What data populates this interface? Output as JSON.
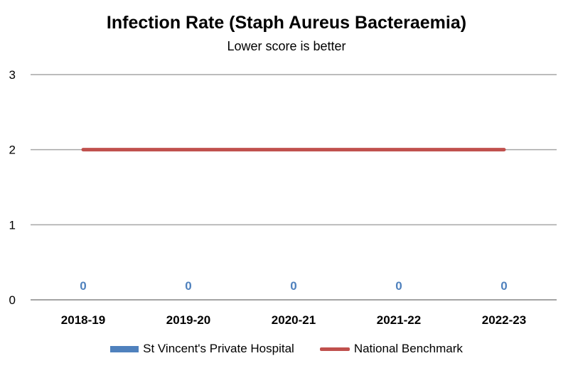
{
  "chart_data": {
    "type": "bar",
    "title": "Infection Rate (Staph Aureus Bacteraemia)",
    "subtitle": "Lower score is better",
    "categories": [
      "2018-19",
      "2019-20",
      "2020-21",
      "2021-22",
      "2022-23"
    ],
    "series": [
      {
        "name": "St Vincent's Private Hospital",
        "type": "bar",
        "values": [
          0,
          0,
          0,
          0,
          0
        ],
        "color": "#4F81BD",
        "data_labels": [
          "0",
          "0",
          "0",
          "0",
          "0"
        ]
      },
      {
        "name": "National Benchmark",
        "type": "line",
        "values": [
          2,
          2,
          2,
          2,
          2
        ],
        "color": "#C0504D"
      }
    ],
    "ylim": [
      0,
      3
    ],
    "yticks": [
      "0",
      "1",
      "2",
      "3"
    ],
    "grid": true,
    "legend_position": "bottom"
  }
}
